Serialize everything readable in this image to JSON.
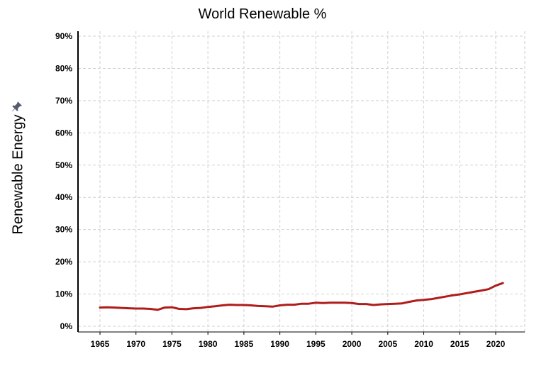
{
  "chart_data": {
    "type": "line",
    "title": "World Renewable %",
    "xlabel": "",
    "ylabel": "Renewable Energy",
    "xlim": [
      1962,
      2025
    ],
    "ylim": [
      0,
      92
    ],
    "x_ticks": [
      1965,
      1970,
      1975,
      1980,
      1985,
      1990,
      1995,
      2000,
      2005,
      2010,
      2015,
      2020
    ],
    "x_tick_labels": [
      "1965",
      "1970",
      "1975",
      "1980",
      "1985",
      "1990",
      "1995",
      "2000",
      "2005",
      "2010",
      "2015",
      "2020"
    ],
    "y_ticks": [
      0,
      10,
      20,
      30,
      40,
      50,
      60,
      70,
      80,
      90
    ],
    "y_tick_labels": [
      "0%",
      "10%",
      "20%",
      "30%",
      "40%",
      "50%",
      "60%",
      "70%",
      "80%",
      "90%"
    ],
    "grid": true,
    "line_color": "#b01c1c",
    "series": [
      {
        "x": [
          1965,
          1966,
          1967,
          1968,
          1969,
          1970,
          1971,
          1972,
          1973,
          1974,
          1975,
          1976,
          1977,
          1978,
          1979,
          1980,
          1981,
          1982,
          1983,
          1984,
          1985,
          1986,
          1987,
          1988,
          1989,
          1990,
          1991,
          1992,
          1993,
          1994,
          1995,
          1996,
          1997,
          1998,
          1999,
          2000,
          2001,
          2002,
          2003,
          2004,
          2005,
          2006,
          2007,
          2008,
          2009,
          2010,
          2011,
          2012,
          2013,
          2014,
          2015,
          2016,
          2017,
          2018,
          2019,
          2020,
          2021
        ],
        "values": [
          5.8,
          5.9,
          5.8,
          5.7,
          5.6,
          5.5,
          5.5,
          5.4,
          5.1,
          5.8,
          5.9,
          5.4,
          5.3,
          5.6,
          5.7,
          6.0,
          6.2,
          6.5,
          6.7,
          6.6,
          6.6,
          6.5,
          6.3,
          6.2,
          6.1,
          6.5,
          6.7,
          6.7,
          7.0,
          7.0,
          7.3,
          7.2,
          7.3,
          7.3,
          7.3,
          7.2,
          6.9,
          6.9,
          6.6,
          6.8,
          6.9,
          7.0,
          7.1,
          7.6,
          8.0,
          8.2,
          8.4,
          8.8,
          9.2,
          9.6,
          9.9,
          10.3,
          10.7,
          11.1,
          11.5,
          12.6,
          13.4
        ]
      }
    ]
  }
}
